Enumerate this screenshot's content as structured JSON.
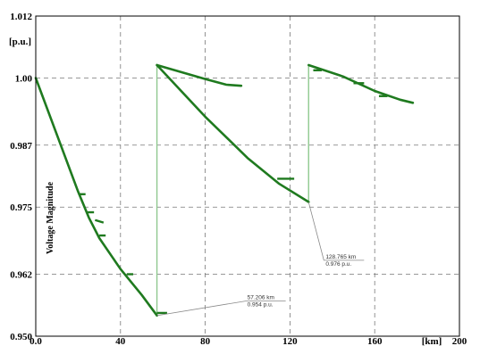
{
  "chart_data": {
    "type": "line",
    "title": "",
    "xlabel": "",
    "ylabel": "Voltage Magnitude",
    "x_unit": "[km]",
    "y_unit": "[p.u.]",
    "xlim": [
      0,
      200
    ],
    "ylim": [
      0.95,
      1.012
    ],
    "x_ticks": [
      0,
      40,
      80,
      120,
      160,
      200
    ],
    "x_tick_labels": [
      "0.0",
      "40",
      "80",
      "120",
      "160",
      "200"
    ],
    "y_ticks": [
      0.95,
      0.962,
      0.975,
      0.987,
      1.0,
      1.012
    ],
    "y_tick_labels": [
      "0.950",
      "0.962",
      "0.975",
      "0.987",
      "1.00",
      "1.012"
    ],
    "grid": true,
    "colors": {
      "series": "#1f7a1f",
      "drop": "#8fc98f",
      "grid": "#777777",
      "annotation": "#888888"
    },
    "series": [
      {
        "points": [
          [
            0,
            1.0
          ],
          [
            10,
            0.989
          ],
          [
            20,
            0.978
          ],
          [
            25,
            0.973
          ],
          [
            30,
            0.969
          ],
          [
            40,
            0.963
          ],
          [
            50,
            0.958
          ],
          [
            57.2,
            0.954
          ]
        ]
      },
      {
        "points": [
          [
            57.2,
            1.0025
          ],
          [
            80,
            0.9925
          ],
          [
            100,
            0.9845
          ],
          [
            115,
            0.9795
          ],
          [
            128.8,
            0.976
          ]
        ]
      },
      {
        "points": [
          [
            57.2,
            1.0025
          ],
          [
            70,
            1.001
          ],
          [
            80,
            0.9998
          ],
          [
            90,
            0.9987
          ],
          [
            97,
            0.9985
          ]
        ]
      },
      {
        "points": [
          [
            128.8,
            1.0025
          ],
          [
            145,
            1.0003
          ],
          [
            160,
            0.9975
          ],
          [
            172,
            0.9958
          ],
          [
            178,
            0.9952
          ]
        ]
      }
    ],
    "drops": [
      {
        "x": 57.2,
        "y_top": 1.0025,
        "y_bottom": 0.954
      },
      {
        "x": 128.8,
        "y_top": 1.0025,
        "y_bottom": 0.976
      }
    ],
    "stubs": [
      [
        [
          57.2,
          0.9545
        ],
        [
          62,
          0.9545
        ]
      ],
      [
        [
          20.5,
          0.9775
        ],
        [
          23.5,
          0.9775
        ]
      ],
      [
        [
          24.5,
          0.974
        ],
        [
          27.5,
          0.974
        ]
      ],
      [
        [
          28,
          0.9725
        ],
        [
          32,
          0.972
        ]
      ],
      [
        [
          30,
          0.9695
        ],
        [
          33,
          0.9695
        ]
      ],
      [
        [
          43,
          0.962
        ],
        [
          46,
          0.962
        ]
      ],
      [
        [
          114,
          0.9805
        ],
        [
          122,
          0.9805
        ]
      ],
      [
        [
          131,
          1.0015
        ],
        [
          135,
          1.0015
        ]
      ],
      [
        [
          150,
          0.999
        ],
        [
          155,
          0.999
        ]
      ],
      [
        [
          162,
          0.9965
        ],
        [
          166,
          0.9965
        ]
      ]
    ],
    "annotations": [
      {
        "x": 57.206,
        "y": 0.954,
        "text": [
          "57.206 km",
          "0.954 p.u."
        ],
        "label_at": [
          99,
          0.9568
        ]
      },
      {
        "x": 128.765,
        "y": 0.976,
        "text": [
          "128.765 km",
          "0.976 p.u."
        ],
        "label_at": [
          136,
          0.9647
        ]
      }
    ]
  }
}
